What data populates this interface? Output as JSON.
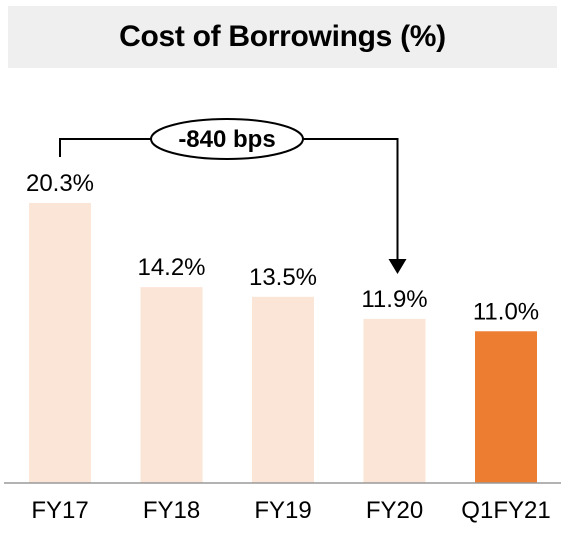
{
  "chart_data": {
    "type": "bar",
    "title": "Cost of Borrowings (%)",
    "categories": [
      "FY17",
      "FY18",
      "FY19",
      "FY20",
      "Q1FY21"
    ],
    "values": [
      20.3,
      14.2,
      13.5,
      11.9,
      11.0
    ],
    "value_labels": [
      "20.3%",
      "14.2%",
      "13.5%",
      "11.9%",
      "11.0%"
    ],
    "xlabel": "",
    "ylabel": "",
    "ylim": [
      0,
      30
    ],
    "grid": false,
    "bar_colors": [
      "#fbe5d6",
      "#fbe5d6",
      "#fbe5d6",
      "#fbe5d6",
      "#ed7d31"
    ],
    "annotation": {
      "text": "-840 bps",
      "from_category": "FY17",
      "to_category": "FY20"
    }
  }
}
